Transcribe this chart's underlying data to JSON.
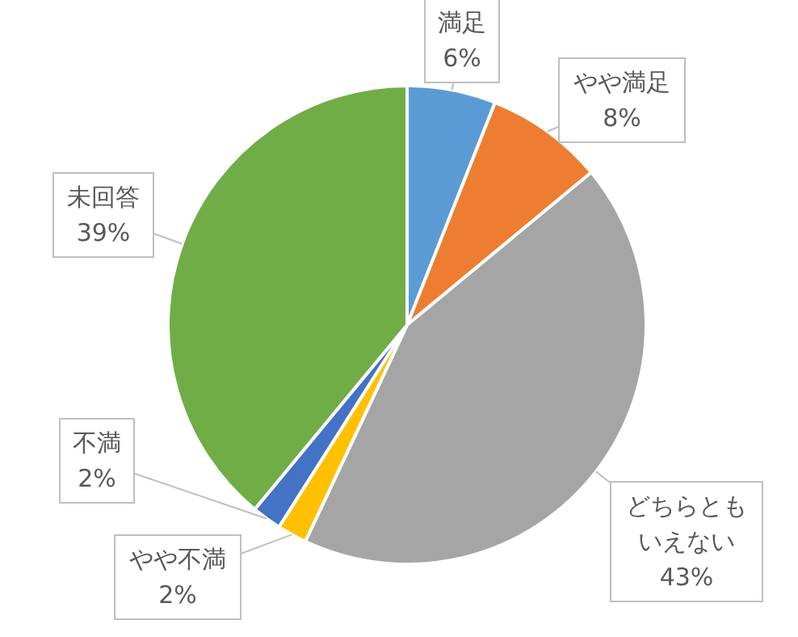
{
  "chart_data": {
    "type": "pie",
    "categories": [
      "満足",
      "やや満足",
      "どちらともいえない",
      "やや不満",
      "不満",
      "未回答"
    ],
    "values": [
      6,
      8,
      43,
      2,
      2,
      39
    ],
    "value_labels": [
      "6%",
      "8%",
      "43%",
      "2%",
      "2%",
      "39%"
    ],
    "colors": [
      "#5b9bd5",
      "#ed7d31",
      "#a5a5a5",
      "#ffc000",
      "#4472c4",
      "#70ad47"
    ],
    "legend": false
  }
}
